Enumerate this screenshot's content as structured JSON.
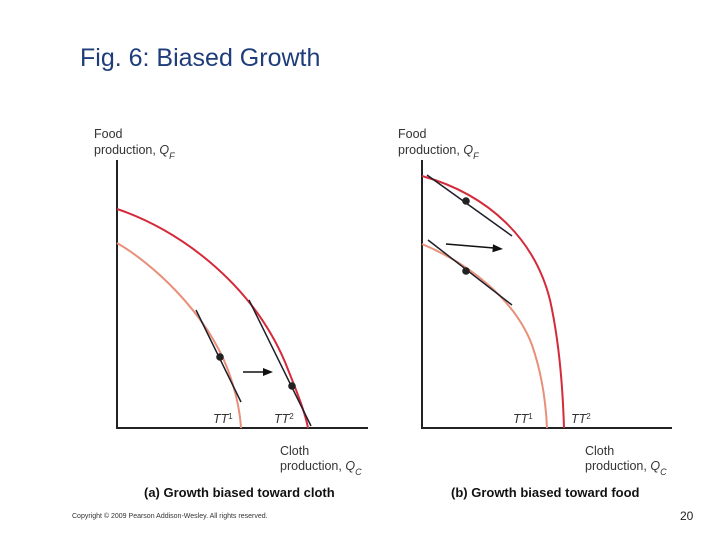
{
  "title": "Fig. 6: Biased Growth",
  "panel_a": {
    "y_axis_label_line1": "Food",
    "y_axis_label_line2": "production, ",
    "y_axis_symbol": "Q",
    "y_axis_sub": "F",
    "x_axis_label_line1": "Cloth",
    "x_axis_label_line2": "production, ",
    "x_axis_symbol": "Q",
    "x_axis_sub": "C",
    "tt1_label": "TT",
    "tt1_sup": "1",
    "tt2_label": "TT",
    "tt2_sup": "2",
    "caption": "(a) Growth biased toward cloth"
  },
  "panel_b": {
    "y_axis_label_line1": "Food",
    "y_axis_label_line2": "production, ",
    "y_axis_symbol": "Q",
    "y_axis_sub": "F",
    "x_axis_label_line1": "Cloth",
    "x_axis_label_line2": "production, ",
    "x_axis_symbol": "Q",
    "x_axis_sub": "C",
    "tt1_label": "TT",
    "tt1_sup": "1",
    "tt2_label": "TT",
    "tt2_sup": "2",
    "caption": "(b) Growth biased toward food"
  },
  "colors": {
    "old_frontier": "#e8907a",
    "new_frontier": "#d42a3a",
    "axis": "#222222",
    "price_line": "#1e1e2a"
  },
  "copyright": "Copyright © 2009 Pearson Addison-Wesley. All rights reserved.",
  "page_number": "20"
}
